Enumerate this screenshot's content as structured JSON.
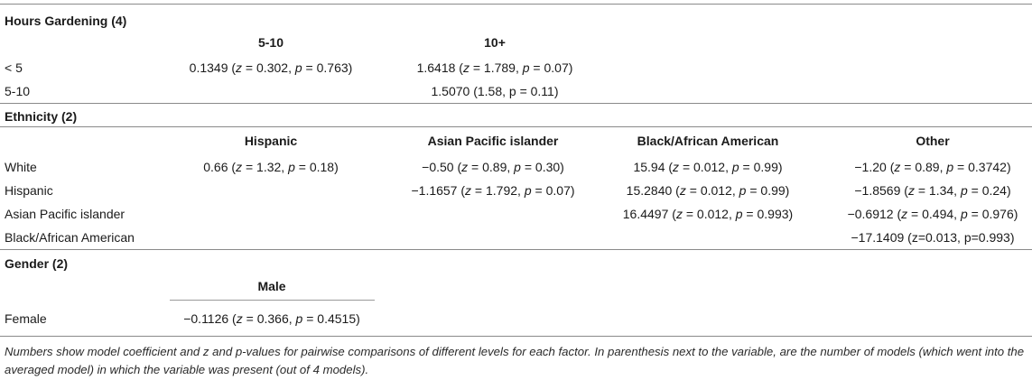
{
  "hours": {
    "title": "Hours Gardening (4)",
    "col_5_10": "5-10",
    "col_10plus": "10+",
    "r1_label": "< 5",
    "r1_c1_coef": "0.1349 (",
    "r1_c1_z": "0.302",
    "r1_c1_p": "0.763",
    "r1_c2_coef": "1.6418 (",
    "r1_c2_z": "1.789",
    "r1_c2_p": "0.07",
    "r2_label": "5-10",
    "r2_c2": "1.5070 (1.58, p = 0.11)"
  },
  "ethnicity": {
    "title": "Ethnicity (2)",
    "headers": [
      "Hispanic",
      "Asian Pacific islander",
      "Black/African American",
      "Other"
    ],
    "rows": [
      {
        "label": "White",
        "c1": {
          "coef": "0.66 (",
          "z": "1.32",
          "p": "0.18"
        },
        "c2": {
          "coef": "−0.50 (",
          "z": "0.89",
          "p": "0.30"
        },
        "c3": {
          "coef": "15.94 (",
          "z": "0.012",
          "p": "0.99"
        },
        "c4": {
          "coef": "−1.20 (",
          "z": "0.89",
          "p": "0.3742"
        }
      },
      {
        "label": "Hispanic",
        "c2": {
          "coef": "−1.1657 (",
          "z": "1.792",
          "p": "0.07"
        },
        "c3": {
          "coef": "15.2840 (",
          "z": "0.012",
          "p": "0.99"
        },
        "c4": {
          "coef": "−1.8569 (",
          "z": "1.34",
          "p": "0.24"
        }
      },
      {
        "label": "Asian Pacific islander",
        "c3": {
          "coef": "16.4497 (",
          "z": "0.012",
          "p": "0.993"
        },
        "c4": {
          "coef": "−0.6912 (",
          "z": "0.494",
          "p": "0.976"
        }
      },
      {
        "label": "Black/African American",
        "c4_plain": "−17.1409 (z=0.013, p=0.993)"
      }
    ]
  },
  "gender": {
    "title": "Gender (2)",
    "col_male": "Male",
    "row_label": "Female",
    "coef": "−0.1126 (",
    "z": "0.366",
    "p": "0.4515"
  },
  "footnote": "Numbers show model coefficient and z and p-values for pairwise comparisons of different levels for each factor. In parenthesis next to the variable, are the number of models (which went into the averaged model) in which the variable was present (out of 4 models)."
}
